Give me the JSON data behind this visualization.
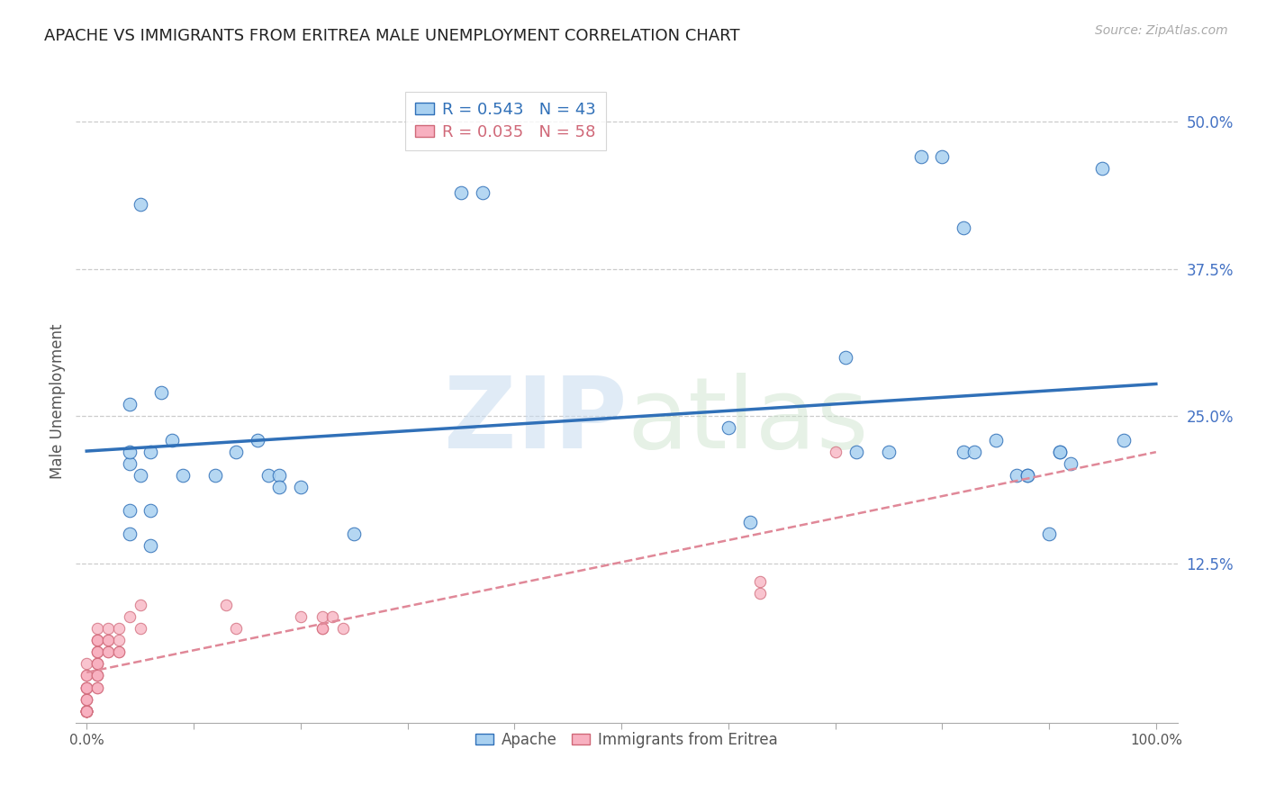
{
  "title": "APACHE VS IMMIGRANTS FROM ERITREA MALE UNEMPLOYMENT CORRELATION CHART",
  "source": "Source: ZipAtlas.com",
  "ylabel": "Male Unemployment",
  "yticks": [
    0.0,
    0.125,
    0.25,
    0.375,
    0.5
  ],
  "ytick_labels": [
    "",
    "12.5%",
    "25.0%",
    "37.5%",
    "50.0%"
  ],
  "xticks": [
    0.0,
    0.1,
    0.2,
    0.3,
    0.4,
    0.5,
    0.6,
    0.7,
    0.8,
    0.9,
    1.0
  ],
  "xtick_labels": [
    "0.0%",
    "",
    "",
    "",
    "",
    "",
    "",
    "",
    "",
    "",
    "100.0%"
  ],
  "apache_R": 0.543,
  "apache_N": 43,
  "eritrea_R": 0.035,
  "eritrea_N": 58,
  "apache_color": "#a8d0f0",
  "eritrea_color": "#f8b0c0",
  "apache_line_color": "#3070b8",
  "eritrea_line_color": "#e08898",
  "apache_x": [
    0.05,
    0.35,
    0.37,
    0.04,
    0.06,
    0.07,
    0.08,
    0.04,
    0.04,
    0.05,
    0.06,
    0.09,
    0.12,
    0.14,
    0.16,
    0.17,
    0.18,
    0.18,
    0.2,
    0.04,
    0.04,
    0.06,
    0.25,
    0.6,
    0.62,
    0.71,
    0.72,
    0.75,
    0.78,
    0.8,
    0.82,
    0.82,
    0.83,
    0.85,
    0.87,
    0.88,
    0.88,
    0.9,
    0.91,
    0.91,
    0.92,
    0.95,
    0.97
  ],
  "apache_y": [
    0.43,
    0.44,
    0.44,
    0.26,
    0.22,
    0.27,
    0.23,
    0.21,
    0.22,
    0.2,
    0.17,
    0.2,
    0.2,
    0.22,
    0.23,
    0.2,
    0.2,
    0.19,
    0.19,
    0.17,
    0.15,
    0.14,
    0.15,
    0.24,
    0.16,
    0.3,
    0.22,
    0.22,
    0.47,
    0.47,
    0.41,
    0.22,
    0.22,
    0.23,
    0.2,
    0.2,
    0.2,
    0.15,
    0.22,
    0.22,
    0.21,
    0.46,
    0.23
  ],
  "eritrea_x": [
    0.0,
    0.0,
    0.0,
    0.0,
    0.0,
    0.0,
    0.0,
    0.0,
    0.0,
    0.0,
    0.0,
    0.0,
    0.0,
    0.0,
    0.0,
    0.0,
    0.0,
    0.0,
    0.0,
    0.0,
    0.01,
    0.01,
    0.01,
    0.01,
    0.01,
    0.01,
    0.01,
    0.01,
    0.01,
    0.01,
    0.01,
    0.01,
    0.01,
    0.01,
    0.01,
    0.02,
    0.02,
    0.02,
    0.02,
    0.02,
    0.03,
    0.03,
    0.03,
    0.03,
    0.04,
    0.05,
    0.05,
    0.13,
    0.14,
    0.2,
    0.22,
    0.22,
    0.22,
    0.23,
    0.24,
    0.63,
    0.63,
    0.7
  ],
  "eritrea_y": [
    0.0,
    0.0,
    0.0,
    0.0,
    0.0,
    0.0,
    0.0,
    0.0,
    0.0,
    0.0,
    0.01,
    0.01,
    0.01,
    0.02,
    0.02,
    0.02,
    0.02,
    0.03,
    0.03,
    0.04,
    0.02,
    0.02,
    0.03,
    0.03,
    0.03,
    0.04,
    0.04,
    0.04,
    0.05,
    0.05,
    0.05,
    0.06,
    0.06,
    0.06,
    0.07,
    0.05,
    0.05,
    0.06,
    0.06,
    0.07,
    0.05,
    0.05,
    0.06,
    0.07,
    0.08,
    0.07,
    0.09,
    0.09,
    0.07,
    0.08,
    0.07,
    0.07,
    0.08,
    0.08,
    0.07,
    0.1,
    0.11,
    0.22
  ],
  "background_color": "#ffffff",
  "grid_color": "#cccccc"
}
